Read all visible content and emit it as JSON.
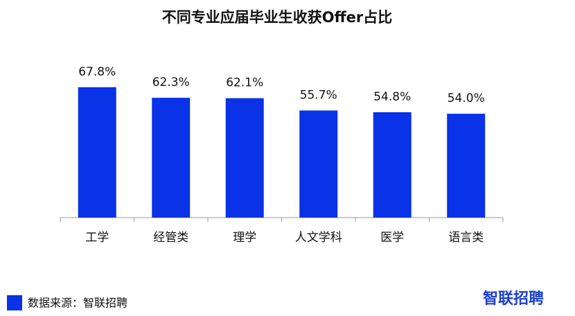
{
  "chart_data": {
    "type": "bar",
    "title": "不同专业应届毕业生收获Offer占比",
    "categories": [
      "工学",
      "经管类",
      "理学",
      "人文学科",
      "医学",
      "语言类"
    ],
    "values": [
      67.8,
      62.3,
      62.1,
      55.7,
      54.8,
      54.0
    ],
    "value_labels": [
      "67.8%",
      "62.3%",
      "62.1%",
      "55.7%",
      "54.8%",
      "54.0%"
    ],
    "color": "#0a32e6"
  },
  "footer": {
    "source": "数据来源：智联招聘",
    "logo": "智联招聘"
  }
}
